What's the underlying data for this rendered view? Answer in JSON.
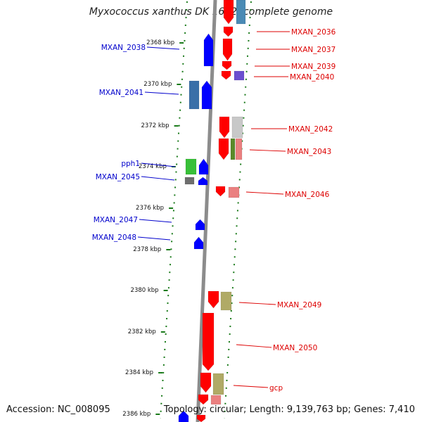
{
  "title": "Myxococcus xanthus DK 1622, complete genome",
  "footer": {
    "accession": "Accession: NC_008095",
    "summary": "Topology: circular; Length: 9,139,763 bp; Genes: 7,410"
  },
  "colors": {
    "forward_label": "#0000cc",
    "reverse_label": "#dd0000",
    "forward_gene": "#0000ff",
    "reverse_gene": "#ff0000",
    "backbone": "#8c8c8c",
    "tick": "#1a7a1a"
  },
  "ticks": [
    "2368 kbp",
    "2370 kbp",
    "2372 kbp",
    "2374 kbp",
    "2376 kbp",
    "2378 kbp",
    "2380 kbp",
    "2382 kbp",
    "2384 kbp",
    "2386 kbp"
  ],
  "labels_left": [
    "MXAN_2038",
    "MXAN_2041",
    "pph1",
    "MXAN_2045",
    "MXAN_2047",
    "MXAN_2048"
  ],
  "labels_right": [
    "MXAN_2036",
    "MXAN_2037",
    "MXAN_2039",
    "MXAN_2040",
    "MXAN_2042",
    "MXAN_2043",
    "MXAN_2046",
    "MXAN_2049",
    "MXAN_2050",
    "gcp"
  ]
}
